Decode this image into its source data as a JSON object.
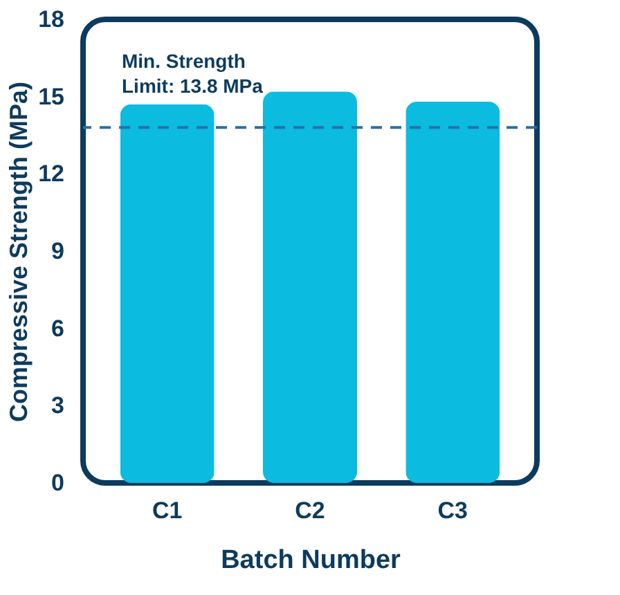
{
  "chart_data": {
    "type": "bar",
    "xlabel": "Batch Number",
    "ylabel": "Compressive Strength (MPa)",
    "categories": [
      "C1",
      "C2",
      "C3"
    ],
    "series": [
      {
        "color": "#0bbbe0",
        "values": [
          14.7,
          15.2,
          14.8
        ]
      }
    ],
    "ylim": [
      0,
      18
    ],
    "yticks": [
      0,
      3,
      6,
      9,
      12,
      15,
      18
    ],
    "grid": false,
    "ref_lines": [
      {
        "axis": "y",
        "value": 13.8,
        "label": "Min. Strength\nLimit: 13.8 MPa",
        "color": "#2a6fa8",
        "line_style": "dashed"
      }
    ]
  }
}
